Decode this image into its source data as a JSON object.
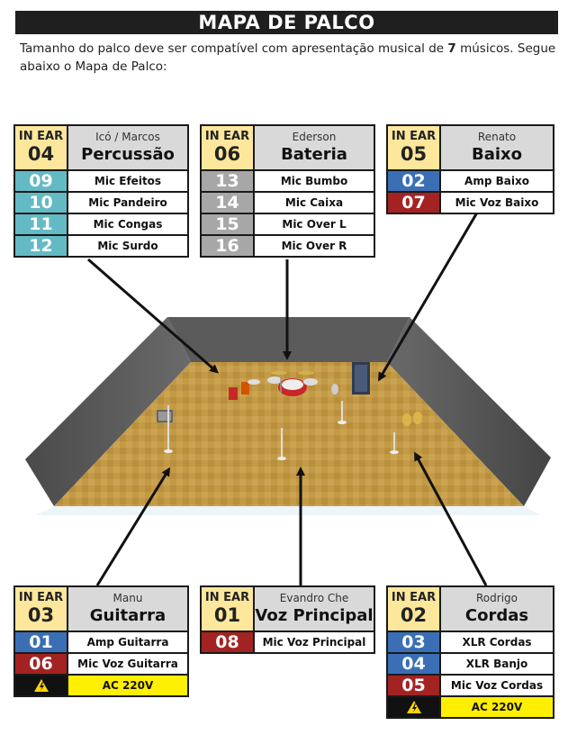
{
  "title": "MAPA DE PALCO",
  "intro": {
    "text_before": "Tamanho do palco deve ser compatível com apresentação musical de ",
    "musicians": "7",
    "text_after": " músicos. Segue abaixo o Mapa de Palco:"
  },
  "boxes": {
    "percussao": {
      "in_ear_label": "IN EAR",
      "in_ear": "04",
      "who": "Icó / Marcos",
      "instrument": "Percussão",
      "rows": [
        {
          "ch": "09",
          "label": "Mic Efeitos",
          "color": "teal"
        },
        {
          "ch": "10",
          "label": "Mic Pandeiro",
          "color": "teal"
        },
        {
          "ch": "11",
          "label": "Mic Congas",
          "color": "teal"
        },
        {
          "ch": "12",
          "label": "Mic Surdo",
          "color": "teal"
        }
      ]
    },
    "bateria": {
      "in_ear_label": "IN EAR",
      "in_ear": "06",
      "who": "Ederson",
      "instrument": "Bateria",
      "rows": [
        {
          "ch": "13",
          "label": "Mic Bumbo",
          "color": "grey"
        },
        {
          "ch": "14",
          "label": "Mic Caixa",
          "color": "grey"
        },
        {
          "ch": "15",
          "label": "Mic Over L",
          "color": "grey"
        },
        {
          "ch": "16",
          "label": "Mic Over R",
          "color": "grey"
        }
      ]
    },
    "baixo": {
      "in_ear_label": "IN EAR",
      "in_ear": "05",
      "who": "Renato",
      "instrument": "Baixo",
      "rows": [
        {
          "ch": "02",
          "label": "Amp Baixo",
          "color": "blue"
        },
        {
          "ch": "07",
          "label": "Mic Voz Baixo",
          "color": "red"
        }
      ]
    },
    "guitarra": {
      "in_ear_label": "IN EAR",
      "in_ear": "03",
      "who": "Manu",
      "instrument": "Guitarra",
      "rows": [
        {
          "ch": "01",
          "label": "Amp Guitarra",
          "color": "blue"
        },
        {
          "ch": "06",
          "label": "Mic Voz Guitarra",
          "color": "red"
        }
      ],
      "power": "AC 220V"
    },
    "voz": {
      "in_ear_label": "IN EAR",
      "in_ear": "01",
      "who": "Evandro Che",
      "instrument": "Voz Principal",
      "rows": [
        {
          "ch": "08",
          "label": "Mic Voz Principal",
          "color": "red"
        }
      ]
    },
    "cordas": {
      "in_ear_label": "IN EAR",
      "in_ear": "02",
      "who": "Rodrigo",
      "instrument": "Cordas",
      "rows": [
        {
          "ch": "03",
          "label": "XLR Cordas",
          "color": "blue"
        },
        {
          "ch": "04",
          "label": "XLR Banjo",
          "color": "blue"
        },
        {
          "ch": "05",
          "label": "Mic Voz Cordas",
          "color": "red"
        }
      ],
      "power": "AC 220V"
    }
  },
  "colors": {
    "teal": "#63bac4",
    "grey": "#a7a7a7",
    "blue": "#3a6fb5",
    "red": "#a32323",
    "in_ear_bg": "#fde79c",
    "power_bg": "#ffef00",
    "floor": "#c39a45",
    "walls": "#555555"
  },
  "icons": {
    "power": "high-voltage-icon"
  }
}
